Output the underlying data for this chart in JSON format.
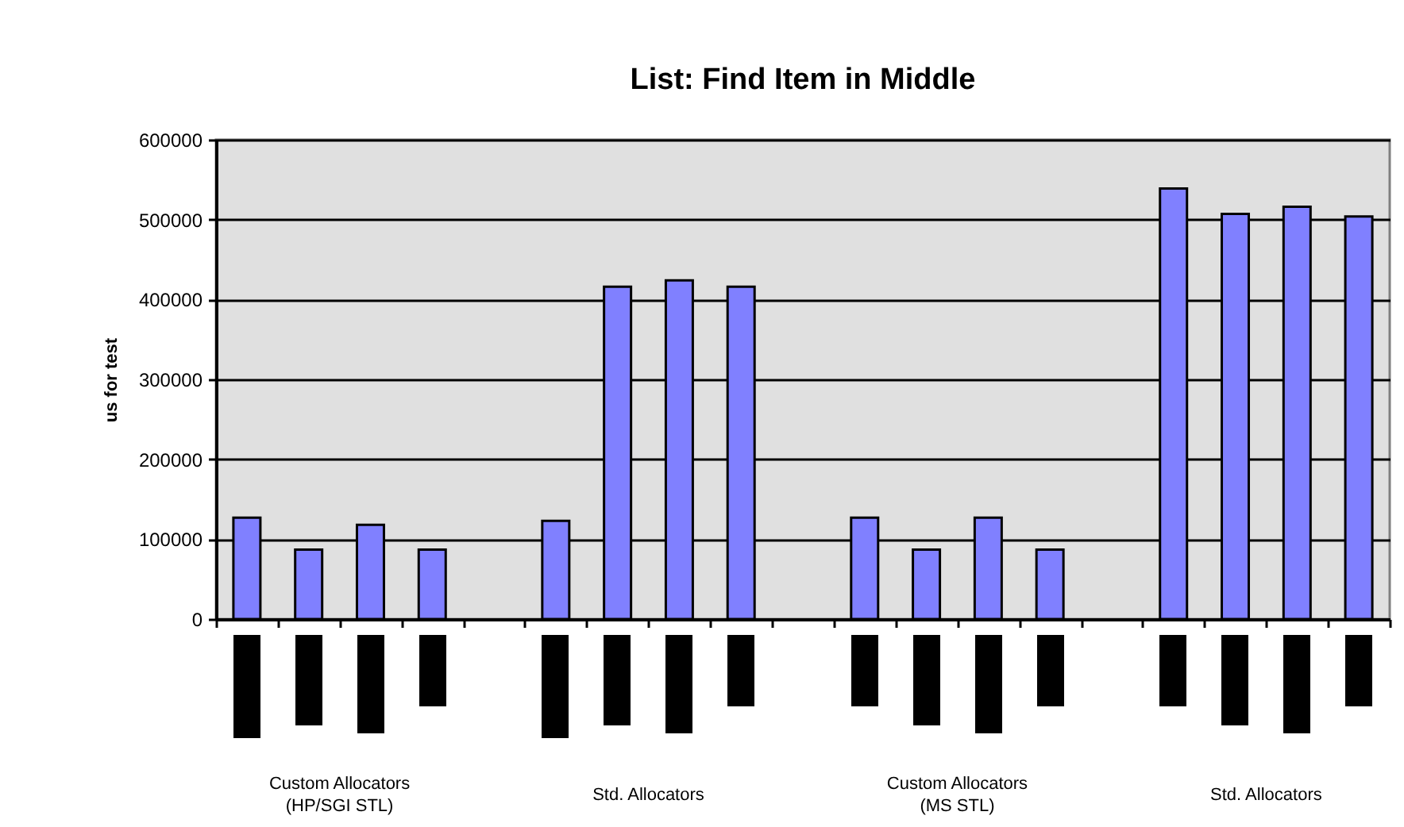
{
  "chart_data": {
    "type": "bar",
    "title": "List: Find Item in Middle",
    "ylabel": "us for test",
    "categories": [
      null,
      null,
      null,
      null,
      null,
      null,
      null,
      null,
      null,
      null,
      null,
      null,
      null,
      null,
      null,
      null,
      null,
      null,
      null
    ],
    "values": [
      127000,
      87000,
      118000,
      87000,
      null,
      123000,
      416000,
      424000,
      416000,
      null,
      127000,
      87000,
      127000,
      87000,
      null,
      539000,
      507000,
      516000,
      504000
    ],
    "color": "#8080ff",
    "ylim": [
      0,
      600000
    ],
    "yticks": [
      0,
      100000,
      200000,
      300000,
      400000,
      500000,
      600000
    ],
    "grid": "y",
    "annotations": [
      "Custom Allocators\n(HP/SGI STL)",
      "Std. Allocators",
      "Custom Allocators\n(MS STL)",
      "Std. Allocators"
    ]
  }
}
